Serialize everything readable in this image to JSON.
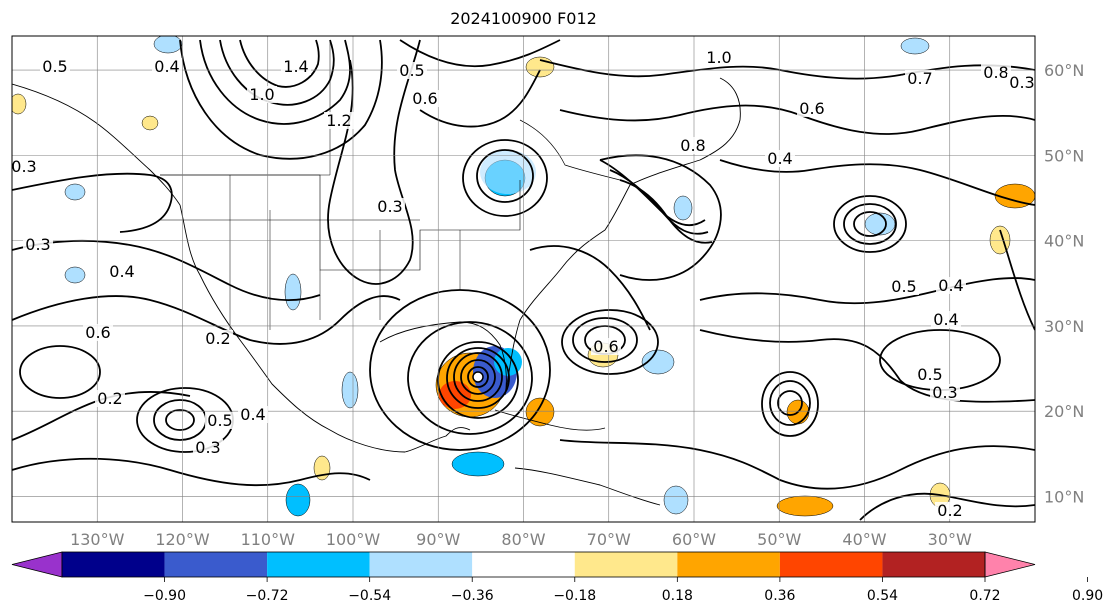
{
  "title": "2024100900 F012",
  "map": {
    "lon_range": [
      -140,
      -20
    ],
    "lat_range": [
      7,
      64
    ],
    "lat_labels": [
      "60°N",
      "50°N",
      "40°N",
      "30°N",
      "20°N",
      "10°N"
    ],
    "lon_labels": [
      "130°W",
      "120°W",
      "110°W",
      "100°W",
      "90°W",
      "80°W",
      "70°W",
      "60°W",
      "50°W",
      "40°W",
      "30°W"
    ],
    "land_color": "#ffffff",
    "grid_color": "#808080"
  },
  "contour_labels": [
    "0.5",
    "0.4",
    "1.4",
    "1.0",
    "0.5",
    "0.6",
    "1.2",
    "1.0",
    "0.8",
    "0.6",
    "0.4",
    "0.3",
    "0.3",
    "0.4",
    "0.6",
    "0.2",
    "0.2",
    "0.5",
    "0.3",
    "0.4",
    "0.6",
    "0.5",
    "0.4",
    "0.4",
    "0.3",
    "0.5",
    "0.2",
    "0.3",
    "0.8",
    "0.7",
    "0.3"
  ],
  "colorbar": {
    "colors": [
      "#9932CC",
      "#00008B",
      "#3A5BCD",
      "#00BFFF",
      "#AFE0FF",
      "#FFFFFF",
      "#FFE88C",
      "#FFA500",
      "#FF4500",
      "#B22222",
      "#FF82AB"
    ],
    "ticks": [
      "−0.90",
      "−0.72",
      "−0.54",
      "−0.36",
      "−0.18",
      "0.18",
      "0.36",
      "0.54",
      "0.72",
      "0.90"
    ]
  }
}
